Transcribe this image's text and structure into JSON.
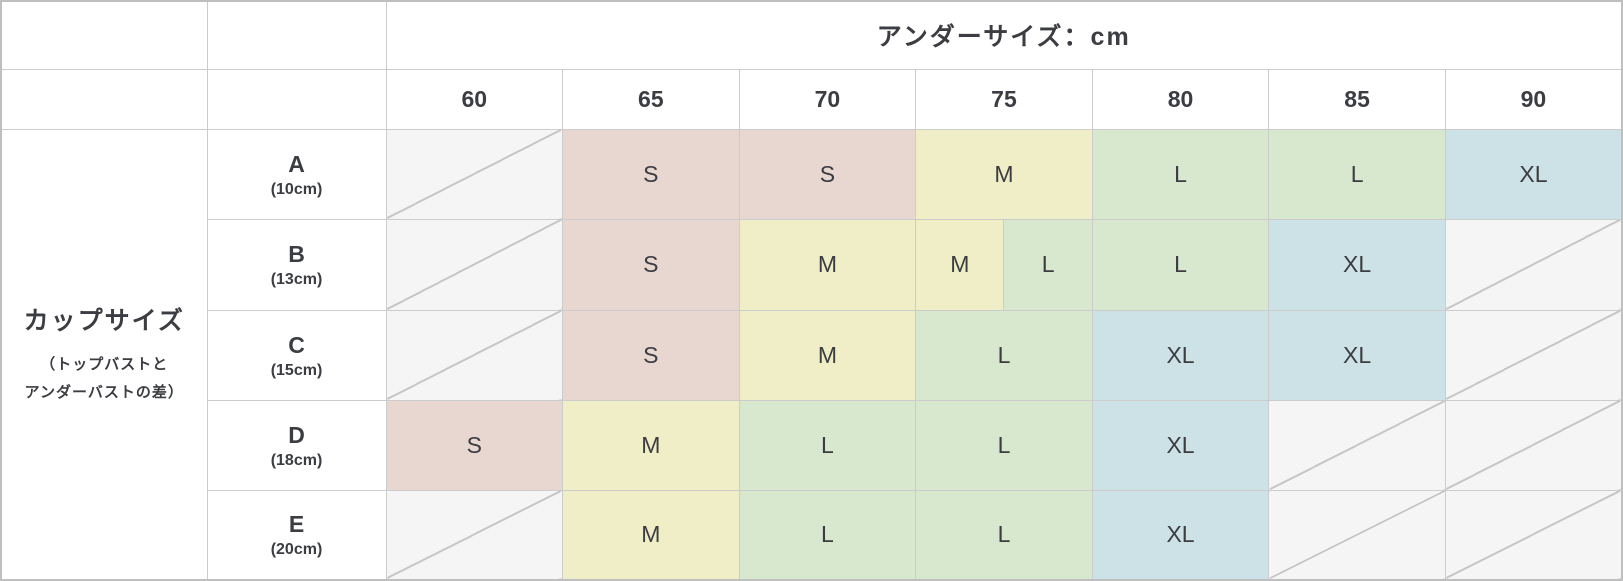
{
  "table": {
    "top_header": "アンダーサイズ：cm",
    "size_columns": [
      "60",
      "65",
      "70",
      "75",
      "80",
      "85",
      "90"
    ],
    "left_header": {
      "title": "カップサイズ",
      "subtitle": [
        "（トップバストと",
        "アンダーバストの差）"
      ]
    },
    "rows": [
      {
        "cup": "A",
        "diff": "(10cm)",
        "cells": [
          "",
          "S",
          "S",
          "M",
          "L",
          "L",
          "XL"
        ]
      },
      {
        "cup": "B",
        "diff": "(13cm)",
        "cells": [
          "",
          "S",
          "M",
          [
            "M",
            "L"
          ],
          "L",
          "XL",
          ""
        ]
      },
      {
        "cup": "C",
        "diff": "(15cm)",
        "cells": [
          "",
          "S",
          "M",
          "L",
          "XL",
          "XL",
          ""
        ]
      },
      {
        "cup": "D",
        "diff": "(18cm)",
        "cells": [
          "S",
          "M",
          "L",
          "L",
          "XL",
          "",
          ""
        ]
      },
      {
        "cup": "E",
        "diff": "(20cm)",
        "cells": [
          "",
          "M",
          "L",
          "L",
          "XL",
          "",
          ""
        ]
      }
    ],
    "size_colors": {
      "S": "#e8d7d1",
      "M": "#f0eec6",
      "L": "#d8e8cf",
      "XL": "#cde2e6"
    },
    "empty_cell_color": "#f5f5f6",
    "text_color": "#3b3d42",
    "border_color": "#cccccc"
  },
  "chart_data": {
    "type": "table",
    "title": "アンダーサイズ：cm",
    "row_axis_label": "カップサイズ（トップバストとアンダーバストの差）",
    "columns": [
      "60",
      "65",
      "70",
      "75",
      "80",
      "85",
      "90"
    ],
    "rows": [
      {
        "label": "A (10cm)",
        "values": [
          "",
          "S",
          "S",
          "M",
          "L",
          "L",
          "XL"
        ]
      },
      {
        "label": "B (13cm)",
        "values": [
          "",
          "S",
          "M",
          "M/L",
          "L",
          "XL",
          ""
        ]
      },
      {
        "label": "C (15cm)",
        "values": [
          "",
          "S",
          "M",
          "L",
          "XL",
          "XL",
          ""
        ]
      },
      {
        "label": "D (18cm)",
        "values": [
          "S",
          "M",
          "L",
          "L",
          "XL",
          "",
          ""
        ]
      },
      {
        "label": "E (20cm)",
        "values": [
          "",
          "M",
          "L",
          "L",
          "XL",
          "",
          ""
        ]
      }
    ],
    "legend_colors": {
      "S": "#e8d7d1",
      "M": "#f0eec6",
      "L": "#d8e8cf",
      "XL": "#cde2e6"
    },
    "empty_cells_marked_with": "diagonal line"
  }
}
